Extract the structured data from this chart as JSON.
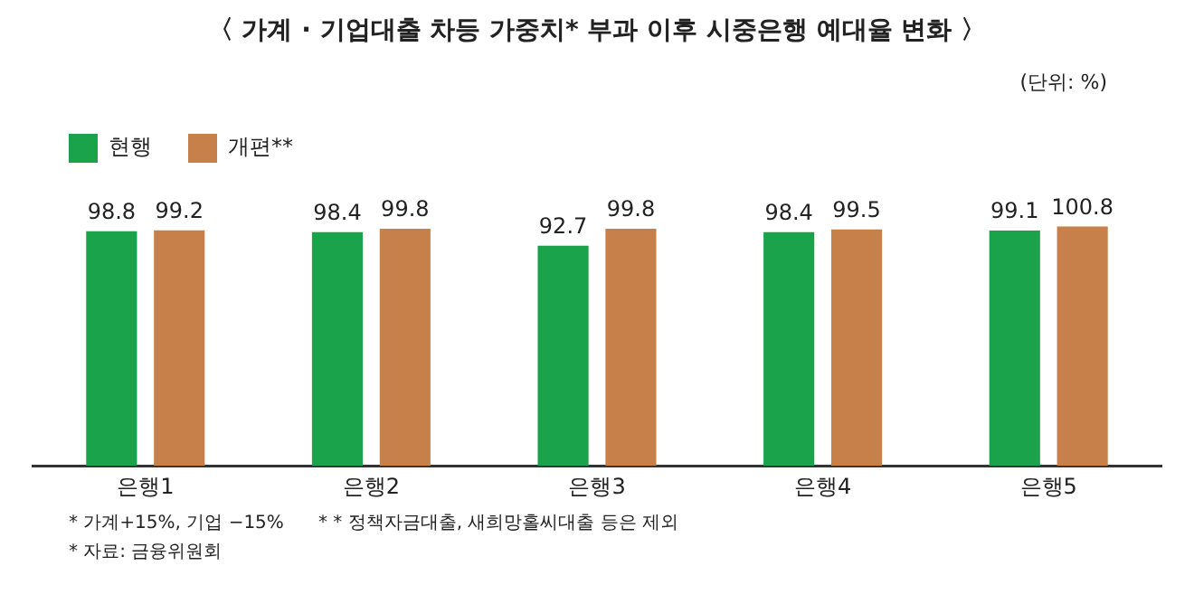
{
  "chart_data": {
    "type": "bar",
    "title": "〈 가계 · 기업대출 차등 가중치* 부과 이후 시중은행 예대율 변화 〉",
    "categories": [
      "은행1",
      "은행2",
      "은행3",
      "은행4",
      "은행5"
    ],
    "series": [
      {
        "name": "현행",
        "color": "#1aa34a",
        "values": [
          98.8,
          98.4,
          92.7,
          98.4,
          99.1
        ]
      },
      {
        "name": "개편**",
        "color": "#c8804a",
        "values": [
          99.2,
          99.8,
          99.8,
          99.5,
          100.8
        ]
      }
    ],
    "tick_labels": "x",
    "grid": false,
    "legend": "top left",
    "data_labels": true,
    "annotations": [
      "(단위: %)",
      "* 가계+15%, 기업 −15%      * * 정책자금대출, 새희망홀씨대출 등은 제외",
      "* 자료: 금융위원회"
    ]
  }
}
